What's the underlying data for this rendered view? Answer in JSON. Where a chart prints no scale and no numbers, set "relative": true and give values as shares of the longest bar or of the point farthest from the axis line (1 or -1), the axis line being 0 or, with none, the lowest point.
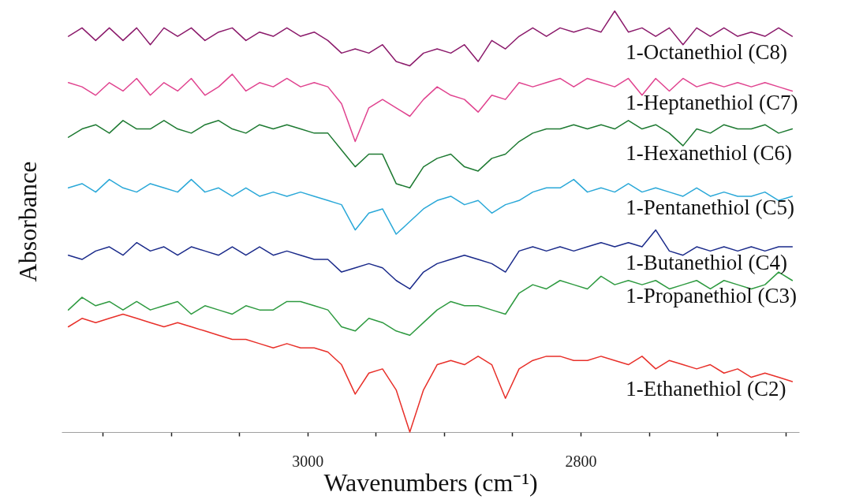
{
  "chart_data": {
    "type": "line",
    "relative": true,
    "xlabel": "Wavenumbers (cm⁻¹)",
    "ylabel": "Absorbance",
    "legend": false,
    "grid": false,
    "marker": "none",
    "line_style": "solid",
    "xlim": [
      3180,
      2640
    ],
    "xticks": [
      {
        "value": 3150,
        "label": null
      },
      {
        "value": 3100,
        "label": null
      },
      {
        "value": 3050,
        "label": null
      },
      3000,
      {
        "value": 2950,
        "label": null
      },
      {
        "value": 2900,
        "label": null
      },
      {
        "value": 2850,
        "label": null
      },
      2800,
      {
        "value": 2750,
        "label": null
      },
      {
        "value": 2700,
        "label": null
      },
      {
        "value": 2650,
        "label": null
      }
    ],
    "x": [
      3175,
      3165,
      3155,
      3145,
      3135,
      3125,
      3115,
      3105,
      3095,
      3085,
      3075,
      3065,
      3055,
      3045,
      3035,
      3025,
      3015,
      3005,
      2995,
      2985,
      2975,
      2965,
      2955,
      2945,
      2935,
      2925,
      2915,
      2905,
      2895,
      2885,
      2875,
      2865,
      2855,
      2845,
      2835,
      2825,
      2815,
      2805,
      2795,
      2785,
      2775,
      2765,
      2755,
      2745,
      2735,
      2725,
      2715,
      2705,
      2695,
      2685,
      2675,
      2665,
      2655,
      2645
    ],
    "series": [
      {
        "name": "1-Octanethiol (C8)",
        "color": "#8b1a6b",
        "values": [
          0.94,
          0.96,
          0.93,
          0.96,
          0.93,
          0.96,
          0.92,
          0.96,
          0.94,
          0.96,
          0.93,
          0.95,
          0.96,
          0.93,
          0.95,
          0.94,
          0.96,
          0.94,
          0.95,
          0.93,
          0.9,
          0.91,
          0.9,
          0.92,
          0.88,
          0.87,
          0.9,
          0.91,
          0.9,
          0.92,
          0.88,
          0.93,
          0.91,
          0.94,
          0.96,
          0.94,
          0.96,
          0.95,
          0.96,
          0.95,
          1.0,
          0.95,
          0.96,
          0.94,
          0.96,
          0.92,
          0.96,
          0.94,
          0.96,
          0.94,
          0.95,
          0.94,
          0.96,
          0.94
        ]
      },
      {
        "name": "1-Heptanethiol (C7)",
        "color": "#e0438f",
        "values": [
          0.83,
          0.82,
          0.8,
          0.83,
          0.81,
          0.84,
          0.8,
          0.83,
          0.81,
          0.84,
          0.8,
          0.82,
          0.85,
          0.81,
          0.83,
          0.82,
          0.84,
          0.82,
          0.83,
          0.82,
          0.78,
          0.69,
          0.77,
          0.79,
          0.77,
          0.75,
          0.79,
          0.82,
          0.8,
          0.79,
          0.76,
          0.8,
          0.79,
          0.83,
          0.82,
          0.83,
          0.84,
          0.82,
          0.84,
          0.83,
          0.82,
          0.84,
          0.8,
          0.84,
          0.81,
          0.84,
          0.82,
          0.83,
          0.82,
          0.83,
          0.82,
          0.83,
          0.82,
          0.81
        ]
      },
      {
        "name": "1-Hexanethiol (C6)",
        "color": "#1e7a32",
        "values": [
          0.7,
          0.72,
          0.73,
          0.71,
          0.74,
          0.72,
          0.72,
          0.74,
          0.72,
          0.71,
          0.73,
          0.74,
          0.72,
          0.71,
          0.73,
          0.72,
          0.73,
          0.72,
          0.71,
          0.71,
          0.67,
          0.63,
          0.66,
          0.66,
          0.59,
          0.58,
          0.63,
          0.65,
          0.66,
          0.63,
          0.62,
          0.65,
          0.66,
          0.69,
          0.71,
          0.72,
          0.72,
          0.73,
          0.72,
          0.73,
          0.72,
          0.74,
          0.72,
          0.73,
          0.71,
          0.68,
          0.72,
          0.71,
          0.73,
          0.72,
          0.72,
          0.73,
          0.71,
          0.72
        ]
      },
      {
        "name": "1-Pentanethiol (C5)",
        "color": "#2aa8d8",
        "values": [
          0.58,
          0.59,
          0.57,
          0.6,
          0.58,
          0.57,
          0.59,
          0.58,
          0.57,
          0.6,
          0.57,
          0.58,
          0.56,
          0.58,
          0.56,
          0.57,
          0.56,
          0.57,
          0.56,
          0.55,
          0.54,
          0.48,
          0.52,
          0.53,
          0.47,
          0.5,
          0.53,
          0.55,
          0.56,
          0.54,
          0.55,
          0.52,
          0.54,
          0.55,
          0.57,
          0.58,
          0.58,
          0.6,
          0.57,
          0.58,
          0.57,
          0.59,
          0.57,
          0.58,
          0.57,
          0.56,
          0.58,
          0.56,
          0.57,
          0.56,
          0.56,
          0.57,
          0.55,
          0.56
        ]
      },
      {
        "name": "1-Butanethiol (C4)",
        "color": "#1a2a8a",
        "values": [
          0.42,
          0.41,
          0.43,
          0.44,
          0.42,
          0.45,
          0.43,
          0.44,
          0.42,
          0.44,
          0.43,
          0.42,
          0.44,
          0.42,
          0.44,
          0.42,
          0.43,
          0.42,
          0.41,
          0.41,
          0.38,
          0.39,
          0.4,
          0.39,
          0.36,
          0.34,
          0.38,
          0.4,
          0.41,
          0.42,
          0.41,
          0.4,
          0.38,
          0.43,
          0.44,
          0.43,
          0.44,
          0.43,
          0.44,
          0.45,
          0.44,
          0.45,
          0.44,
          0.48,
          0.43,
          0.42,
          0.44,
          0.43,
          0.44,
          0.43,
          0.44,
          0.43,
          0.44,
          0.44
        ]
      },
      {
        "name": "1-Propanethiol (C3)",
        "color": "#2e9a40",
        "values": [
          0.29,
          0.32,
          0.3,
          0.31,
          0.29,
          0.31,
          0.29,
          0.3,
          0.31,
          0.28,
          0.3,
          0.29,
          0.28,
          0.3,
          0.29,
          0.29,
          0.31,
          0.31,
          0.3,
          0.29,
          0.25,
          0.24,
          0.27,
          0.26,
          0.24,
          0.23,
          0.26,
          0.29,
          0.31,
          0.3,
          0.3,
          0.29,
          0.28,
          0.33,
          0.35,
          0.34,
          0.36,
          0.35,
          0.34,
          0.37,
          0.35,
          0.36,
          0.35,
          0.36,
          0.34,
          0.35,
          0.36,
          0.34,
          0.36,
          0.35,
          0.34,
          0.35,
          0.38,
          0.36
        ]
      },
      {
        "name": "1-Ethanethiol (C2)",
        "color": "#e8302a",
        "values": [
          0.25,
          0.27,
          0.26,
          0.27,
          0.28,
          0.27,
          0.26,
          0.25,
          0.26,
          0.25,
          0.24,
          0.23,
          0.22,
          0.22,
          0.21,
          0.2,
          0.21,
          0.2,
          0.2,
          0.19,
          0.16,
          0.09,
          0.14,
          0.15,
          0.1,
          0.0,
          0.1,
          0.16,
          0.17,
          0.16,
          0.18,
          0.16,
          0.08,
          0.15,
          0.17,
          0.18,
          0.18,
          0.17,
          0.17,
          0.18,
          0.17,
          0.16,
          0.18,
          0.15,
          0.17,
          0.16,
          0.15,
          0.16,
          0.14,
          0.15,
          0.13,
          0.14,
          0.13,
          0.12
        ]
      }
    ]
  }
}
